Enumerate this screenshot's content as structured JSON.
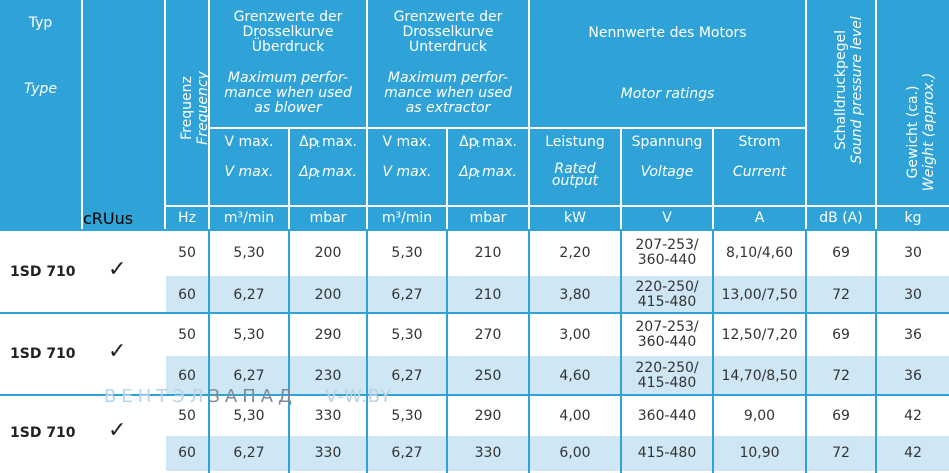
{
  "header": {
    "typ": "Typ",
    "type": "Type",
    "freq_de": "Frequenz",
    "freq_en": "Frequency",
    "blower_title": [
      "Grenzwerte der",
      "Drosselkurve",
      "Überdruck"
    ],
    "blower_en": [
      "Maximum perfor-",
      "mance when used",
      "as blower"
    ],
    "extractor_title": [
      "Grenzwerte der",
      "Drosselkurve",
      "Unterdruck"
    ],
    "extractor_en": [
      "Maximum perfor-",
      "mance when used",
      "as extractor"
    ],
    "motor_title": "Nennwerte des Motors",
    "motor_en": "Motor ratings",
    "vmax_de": "V max.",
    "vmax_en": "V max.",
    "dp_de": "Δp  max.",
    "dp_en": "Δp  max.",
    "dp_sub": "t",
    "leistung": "Leistung",
    "leistung_en": [
      "Rated",
      "output"
    ],
    "spannung": "Spannung",
    "spannung_en": "Voltage",
    "strom": "Strom",
    "strom_en": "Current",
    "sound_de": "Schalldruckpegel",
    "sound_en": "Sound pressure level",
    "weight_de": "Gewicht (ca.)",
    "weight_en": "Weight (approx.)",
    "cert_letters": [
      "c",
      "R",
      "U",
      "us"
    ],
    "units": [
      "Hz",
      "m³/min",
      "mbar",
      "m³/min",
      "mbar",
      "kW",
      "V",
      "A",
      "dB (A)",
      "kg"
    ]
  },
  "groups": [
    {
      "label": "1SD 710",
      "check": "✓",
      "rows": [
        [
          "50",
          "5,30",
          "200",
          "5,30",
          "210",
          "2,20",
          [
            "207-253/",
            "360-440"
          ],
          "8,10/4,60",
          "69",
          "30"
        ],
        [
          "60",
          "6,27",
          "200",
          "6,27",
          "210",
          "3,80",
          [
            "220-250/",
            "415-480"
          ],
          "13,00/7,50",
          "72",
          "30"
        ]
      ]
    },
    {
      "label": "1SD 710",
      "check": "✓",
      "rows": [
        [
          "50",
          "5,30",
          "290",
          "5,30",
          "270",
          "3,00",
          [
            "207-253/",
            "360-440"
          ],
          "12,50/7,20",
          "69",
          "36"
        ],
        [
          "60",
          "6,27",
          "230",
          "6,27",
          "250",
          "4,60",
          [
            "220-250/",
            "415-480"
          ],
          "14,70/8,50",
          "72",
          "36"
        ]
      ]
    },
    {
      "label": "1SD 710",
      "check": "✓",
      "rows": [
        [
          "50",
          "5,30",
          "330",
          "5,30",
          "290",
          "4,00",
          [
            "360-440"
          ],
          "9,00",
          "69",
          "42"
        ],
        [
          "60",
          "6,27",
          "330",
          "6,27",
          "330",
          "6,00",
          [
            "415-480"
          ],
          "10,90",
          "72",
          "42"
        ]
      ]
    }
  ],
  "watermark": {
    "part1": "ВЕНТЭЛ",
    "part2": "ЗАПАД",
    "part3": "V-W.BY"
  },
  "colors": {
    "header": "#2fa3d7",
    "row_alt": "#cfe6f4",
    "text": "#333333"
  }
}
